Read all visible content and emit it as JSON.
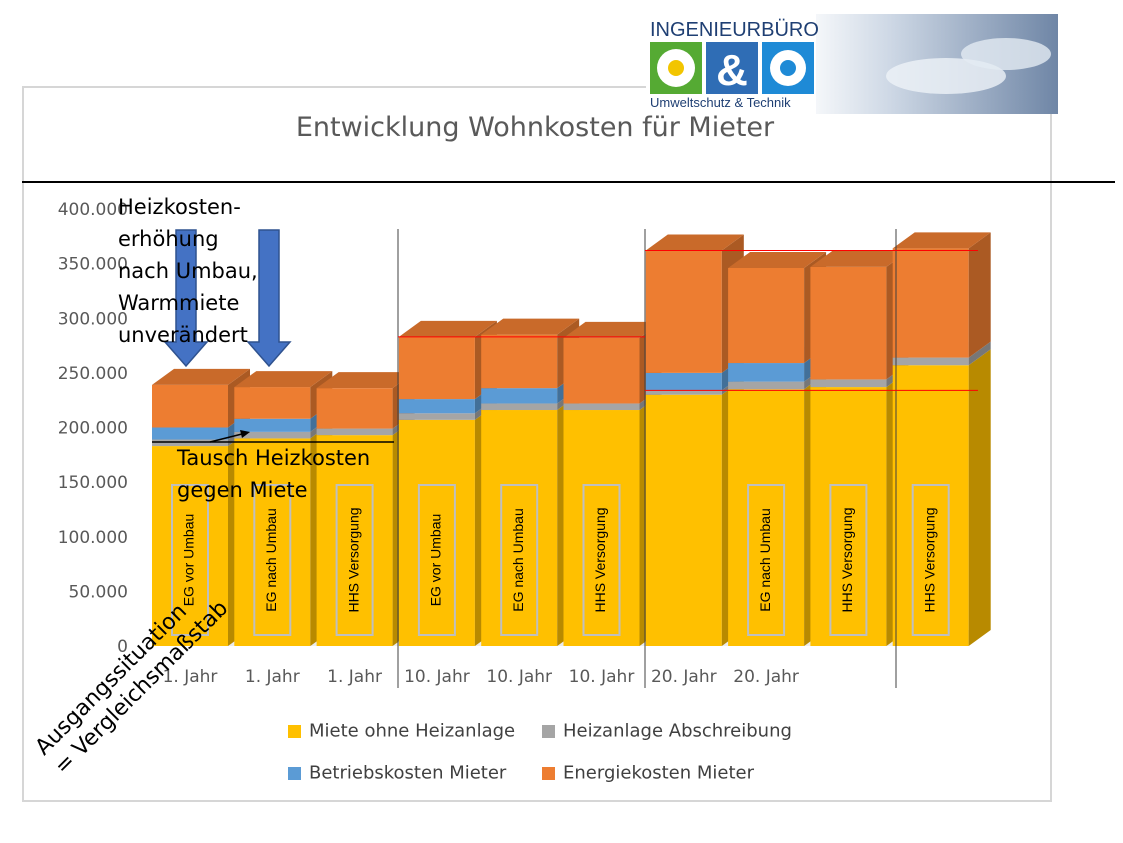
{
  "logo": {
    "line1": "INGENIEURBÜRO",
    "ampersand": "&",
    "line2": "Umweltschutz & Technik"
  },
  "annotations": {
    "heizkosten": [
      "Heizkosten-",
      "erhöhung",
      "nach Umbau,",
      "Warmmiete",
      "unverändert"
    ],
    "tausch": [
      "Tausch Heizkosten",
      "gegen Miete"
    ],
    "ausgang": [
      "Ausgangssituation",
      "= Vergleichsmaßstab"
    ]
  },
  "chart_data": {
    "type": "bar",
    "stacked": true,
    "three_d": true,
    "title": "Entwicklung Wohnkosten für Mieter",
    "ylim": [
      0,
      400000
    ],
    "yticks": [
      "0",
      "50.000",
      "100.000",
      "150.000",
      "200.000",
      "250.000",
      "300.000",
      "350.000",
      "400.000"
    ],
    "categories": [
      "1. Jahr",
      "1. Jahr",
      "1. Jahr",
      "10. Jahr",
      "10. Jahr",
      "10. Jahr",
      "20. Jahr",
      "20. Jahr",
      "",
      ""
    ],
    "bar_labels": [
      "EG vor Umbau",
      "EG nach Umbau",
      "HHS Versorgung",
      "EG vor Umbau",
      "EG nach Umbau",
      "HHS Versorgung",
      "",
      "EG nach Umbau",
      "HHS Versorgung",
      "HHS Versorgung"
    ],
    "series": [
      {
        "name": "Miete ohne Heizanlage",
        "color": "#FFC000",
        "values": [
          183000,
          190000,
          193000,
          207000,
          216000,
          216000,
          230000,
          235000,
          237000,
          257000
        ]
      },
      {
        "name": "Heizanlage Abschreibung",
        "color": "#A5A5A5",
        "values": [
          6000,
          6000,
          6000,
          6000,
          6000,
          6000,
          4000,
          7000,
          7000,
          7000
        ]
      },
      {
        "name": "Betriebskosten Mieter",
        "color": "#5B9BD5",
        "values": [
          11000,
          12000,
          0,
          13000,
          14000,
          0,
          16000,
          17000,
          0,
          0
        ]
      },
      {
        "name": "Energiekosten Mieter",
        "color": "#ED7D31",
        "values": [
          39000,
          29000,
          37000,
          57000,
          49000,
          60000,
          112000,
          87000,
          103000,
          100000
        ]
      }
    ],
    "grid": false,
    "legend": "bottom"
  }
}
